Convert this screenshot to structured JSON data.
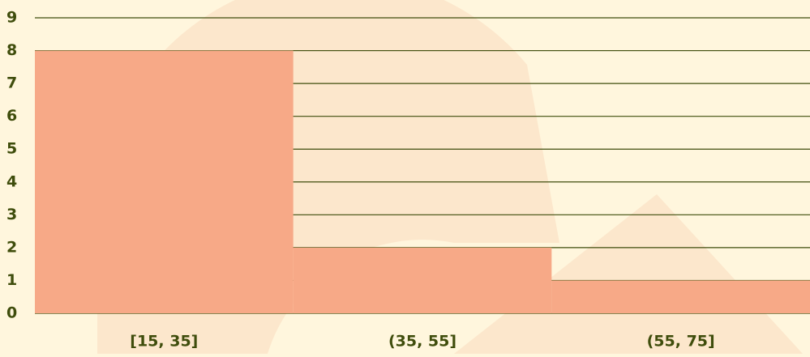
{
  "chart_data": {
    "type": "bar",
    "categories": [
      "[15, 35]",
      "(35, 55]",
      "(55, 75]"
    ],
    "values": [
      8,
      2,
      1
    ],
    "color": "#f7a987",
    "ylim": [
      0,
      9
    ],
    "yticks": [
      0,
      1,
      2,
      3,
      4,
      5,
      6,
      7,
      8,
      9
    ],
    "grid": true
  }
}
